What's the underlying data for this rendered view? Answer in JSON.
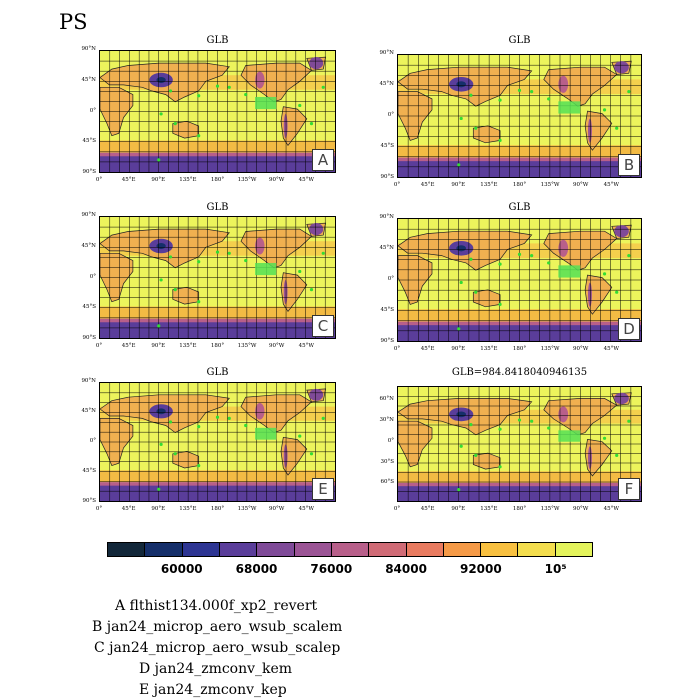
{
  "title": "PS",
  "panels": [
    {
      "title": "GLB",
      "letter": "A"
    },
    {
      "title": "GLB",
      "letter": "B"
    },
    {
      "title": "GLB",
      "letter": "C"
    },
    {
      "title": "GLB",
      "letter": "D"
    },
    {
      "title": "GLB",
      "letter": "E"
    },
    {
      "title": "GLB=984.8418040946135",
      "letter": "F"
    }
  ],
  "lat_labels_standard": [
    "90°N",
    "45°N",
    "0°",
    "45°S",
    "90°S"
  ],
  "lat_labels_panel_f": [
    "60°N",
    "30°N",
    "0°",
    "30°S",
    "60°S"
  ],
  "lon_labels": [
    "0°",
    "45°E",
    "90°E",
    "135°E",
    "180°",
    "135°W",
    "90°W",
    "45°W"
  ],
  "colorbar": {
    "colors": [
      "#13283a",
      "#152f6a",
      "#2d3593",
      "#5a3d9a",
      "#7f4a98",
      "#9b5495",
      "#b85f8a",
      "#d06b76",
      "#e97b60",
      "#f59a47",
      "#f8c040",
      "#f4de4e",
      "#e4f45c"
    ],
    "labels": [
      "60000",
      "68000",
      "76000",
      "84000",
      "92000",
      "10⁵"
    ]
  },
  "legend": [
    "A  flthist134.000f_xp2_revert",
    "B  jan24_microp_aero_wsub_scalem",
    "C  jan24_microp_aero_wsub_scalep",
    "D  jan24_zmconv_kem",
    "E  jan24_zmconv_kep"
  ]
}
